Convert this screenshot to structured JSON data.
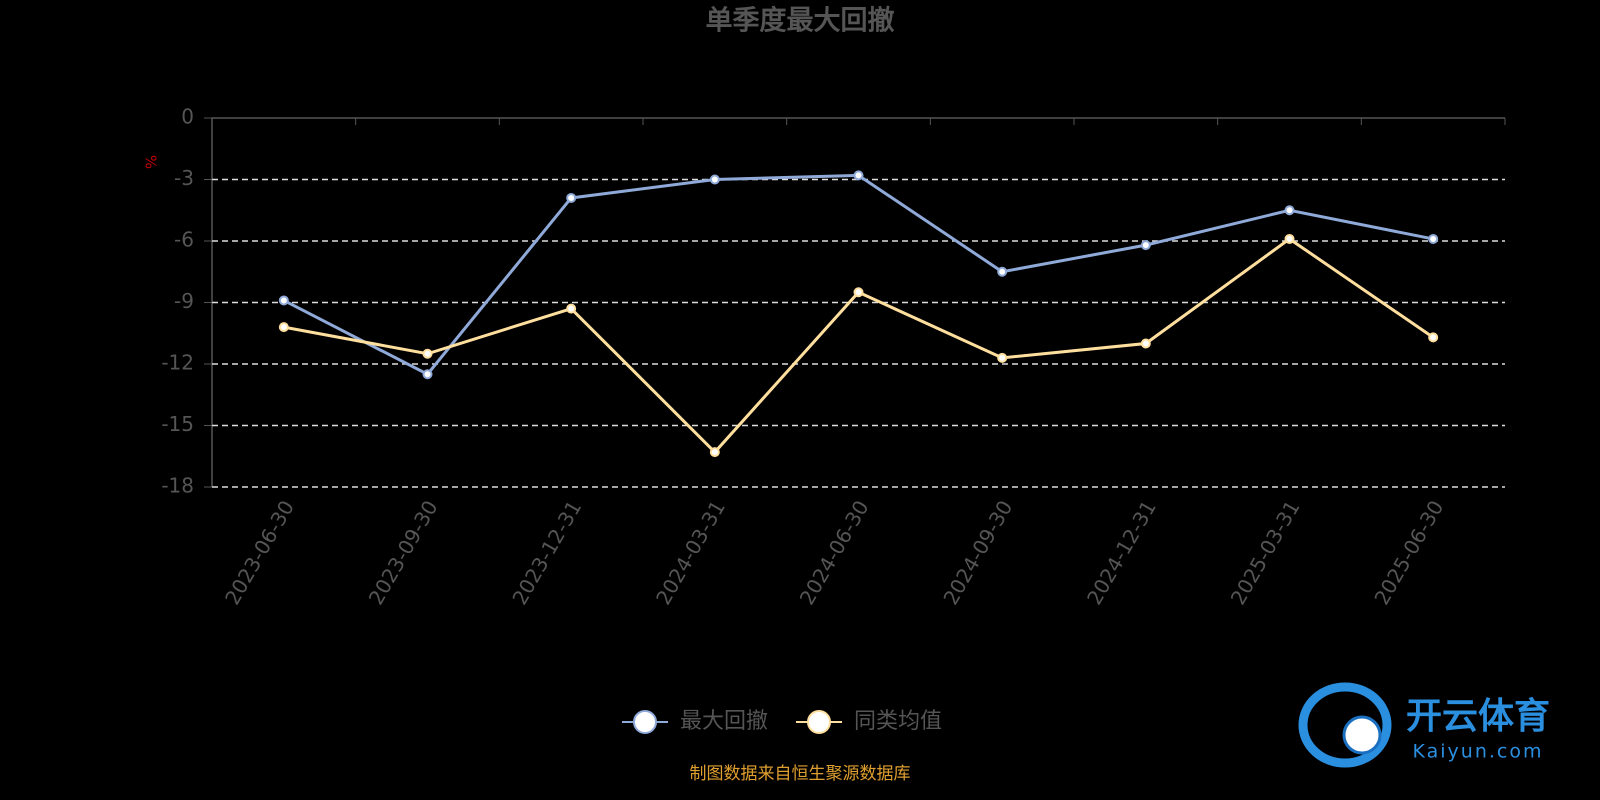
{
  "chart_data": {
    "type": "line",
    "title": "单季度最大回撤",
    "y_label": "%",
    "categories": [
      "2023-06-30",
      "2023-09-30",
      "2023-12-31",
      "2024-03-31",
      "2024-06-30",
      "2024-09-30",
      "2024-12-31",
      "2025-03-31",
      "2025-06-30"
    ],
    "series": [
      {
        "name": "最大回撤",
        "color": "#8fa9d8",
        "values": [
          -8.9,
          -12.5,
          -3.9,
          -3.0,
          -2.8,
          -7.5,
          -6.2,
          -4.5,
          -5.9
        ]
      },
      {
        "name": "同类均值",
        "color": "#ffdf9e",
        "values": [
          -10.2,
          -11.5,
          -9.3,
          -16.3,
          -8.5,
          -11.7,
          -11.0,
          -5.9,
          -10.7
        ]
      }
    ],
    "ylim": [
      0,
      -18
    ],
    "yticks": [
      0,
      -3,
      -6,
      -9,
      -12,
      -15,
      -18
    ],
    "grid": true,
    "source": "制图数据来自恒生聚源数据库",
    "watermark": {
      "brand": "开云体育",
      "site": "Kaiyun.com"
    }
  }
}
